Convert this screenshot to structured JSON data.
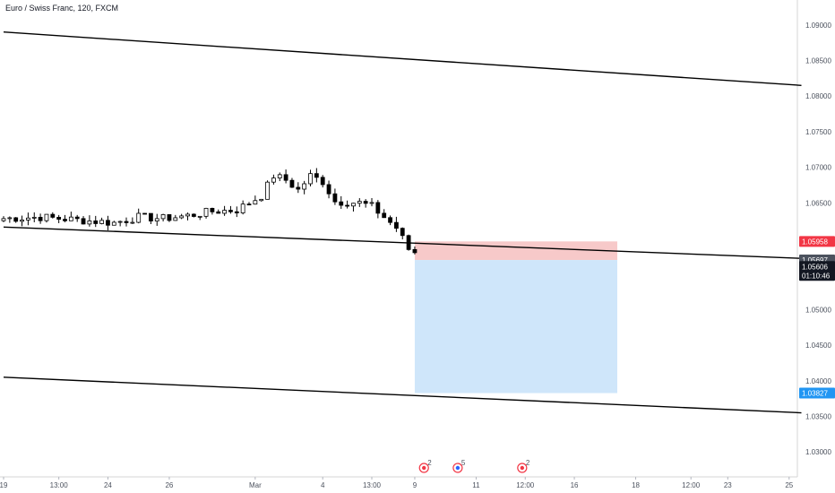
{
  "chart_data": {
    "type": "candlestick",
    "title": "Euro / Swiss Franc, 120, FXCM",
    "ylim": [
      1.0265,
      1.0935
    ],
    "y_ticks": [
      "1.09000",
      "1.08500",
      "1.08000",
      "1.07500",
      "1.07000",
      "1.06500",
      "1.05000",
      "1.04500",
      "1.04000",
      "1.03500",
      "1.03000"
    ],
    "x_ticks": [
      "19",
      "13:00",
      "24",
      "26",
      "Mar",
      "4",
      "13:00",
      "9",
      "11",
      "12:00",
      "16",
      "18",
      "12:00",
      "23",
      "25"
    ],
    "x_tick_index": [
      0,
      9,
      17,
      27,
      41,
      52,
      60,
      67,
      77,
      85,
      93,
      103,
      112,
      118,
      128
    ],
    "candles_anchor": [
      [
        0,
        1.0628
      ],
      [
        6,
        1.063
      ],
      [
        12,
        1.0626
      ],
      [
        18,
        1.0622
      ],
      [
        22,
        1.063
      ],
      [
        26,
        1.0628
      ],
      [
        30,
        1.0632
      ],
      [
        34,
        1.0638
      ],
      [
        38,
        1.064
      ],
      [
        42,
        1.066
      ],
      [
        44,
        1.0688
      ],
      [
        46,
        1.0682
      ],
      [
        48,
        1.0668
      ],
      [
        50,
        1.0688
      ],
      [
        52,
        1.068
      ],
      [
        54,
        1.0652
      ],
      [
        58,
        1.065
      ],
      [
        60,
        1.0645
      ],
      [
        62,
        1.063
      ],
      [
        64,
        1.0615
      ],
      [
        66,
        1.0585
      ],
      [
        67,
        1.058
      ]
    ],
    "trend_lines": [
      {
        "x1": 0,
        "y1": 1.089,
        "x2": 130,
        "y2": 1.0815
      },
      {
        "x1": 0,
        "y1": 1.0616,
        "x2": 130,
        "y2": 1.0572
      },
      {
        "x1": 0,
        "y1": 1.0405,
        "x2": 130,
        "y2": 1.0355
      }
    ],
    "position": {
      "entry": 1.05697,
      "stop": 1.05958,
      "target": 1.03827,
      "x_start": 67,
      "x_end": 100,
      "stop_color": "#f7c9c9",
      "target_color": "#cfe6fa"
    },
    "price_tags": [
      {
        "label": "1.05958",
        "value": 1.05958,
        "color": "#f23645"
      },
      {
        "label": "1.05697",
        "value": 1.05697,
        "color": "#4c525e"
      },
      {
        "label": "1.05606",
        "value": 1.05606,
        "color": "#131722"
      },
      {
        "label": "01:10:46",
        "value": 1.0548,
        "color": "#131722"
      },
      {
        "label": "1.03827",
        "value": 1.03827,
        "color": "#2196f3"
      }
    ],
    "event_markers": [
      {
        "label": "2",
        "x": 68.5,
        "color": "#f23645",
        "ring": "#f23645"
      },
      {
        "label": "5",
        "x": 74,
        "color": "#2962ff",
        "ring": "#f23645"
      },
      {
        "label": "2",
        "x": 84.5,
        "color": "#f23645",
        "ring": "#f23645"
      }
    ],
    "candle_up_color": "#ffffff",
    "candle_border_color": "#000000"
  }
}
